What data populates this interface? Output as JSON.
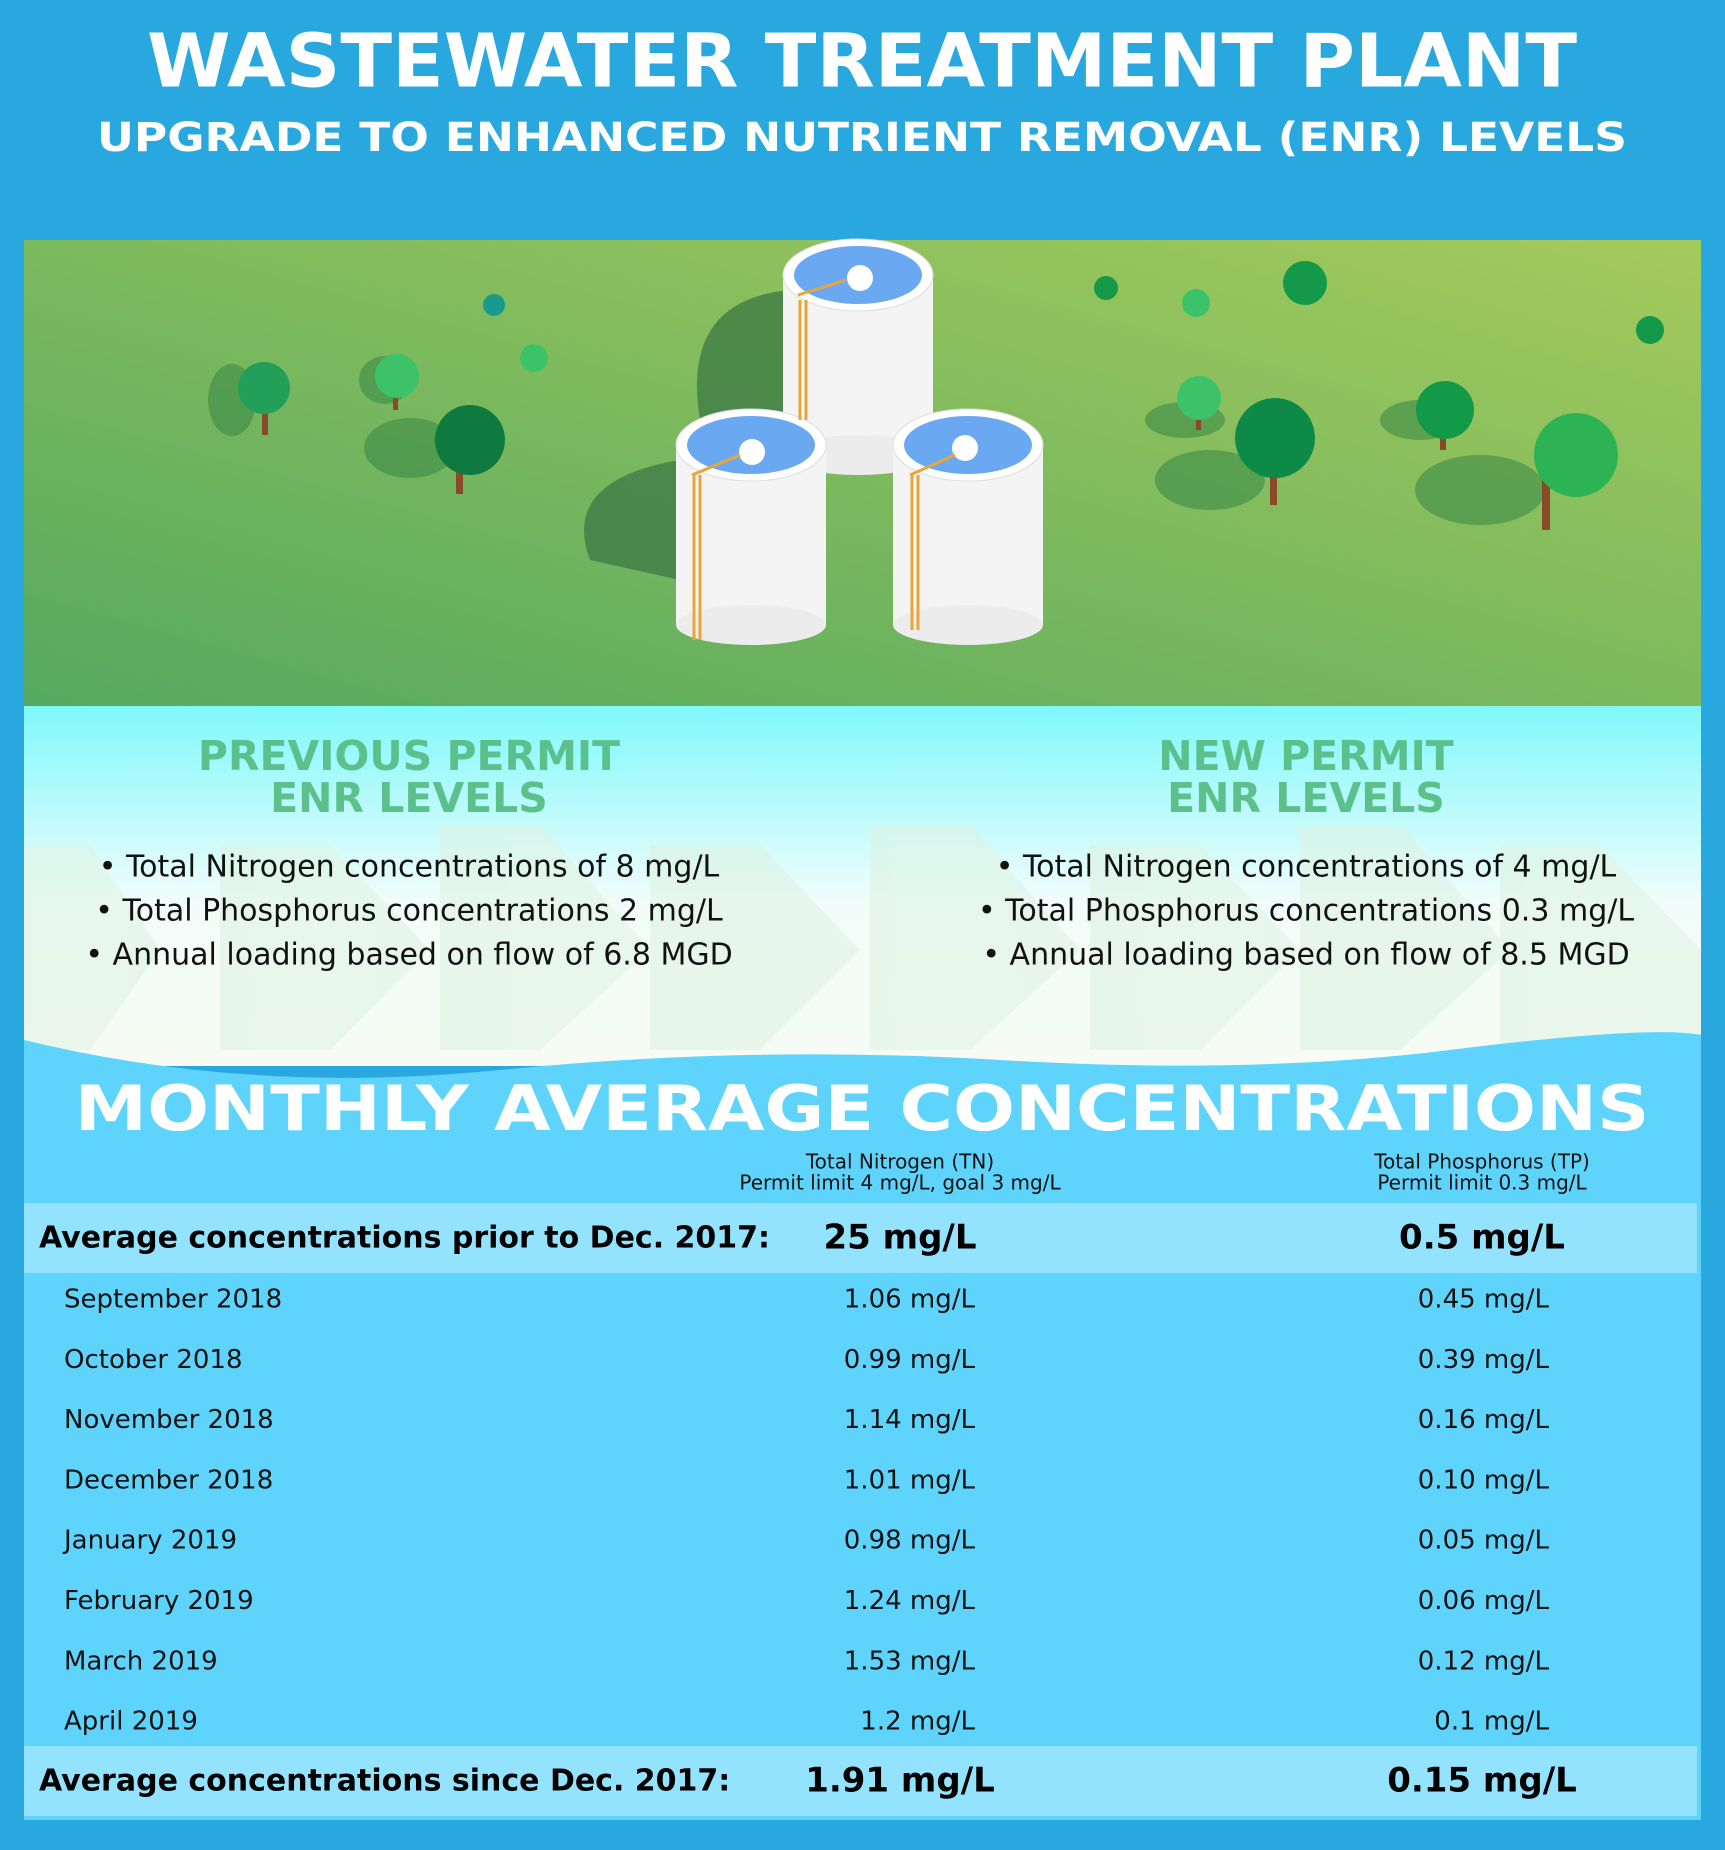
{
  "header": {
    "title": "WASTEWATER TREATMENT PLANT",
    "subtitle": "UPGRADE TO ENHANCED NUTRIENT REMOVAL (ENR) LEVELS"
  },
  "permits": [
    {
      "title": [
        "PREVIOUS PERMIT",
        "ENR LEVELS"
      ],
      "items": [
        "• Total Nitrogen concentrations of 8 mg/L",
        "• Total Phosphorus concentrations 2 mg/L",
        "• Annual loading based on flow of 6.8 MGD"
      ]
    },
    {
      "title": [
        "NEW PERMIT",
        "ENR LEVELS"
      ],
      "items": [
        "• Total Nitrogen concentrations of 4 mg/L",
        "• Total Phosphorus concentrations 0.3 mg/L",
        "• Annual loading based on flow of 8.5 MGD"
      ]
    }
  ],
  "table": {
    "heading": "MONTHLY AVERAGE CONCENTRATIONS",
    "columns": [
      {
        "name": "Total Nitrogen (TN)",
        "note": "Permit limit 4 mg/L, goal 3 mg/L"
      },
      {
        "name": "Total Phosphorus (TP)",
        "note": "Permit limit 0.3 mg/L"
      }
    ],
    "prior": [
      "Average concentrations prior to Dec. 2017:",
      "25 mg/L",
      "0.5 mg/L"
    ],
    "rows": [
      [
        "September 2018",
        "1.06 mg/L",
        "0.45 mg/L"
      ],
      [
        "October 2018",
        "0.99 mg/L",
        "0.39 mg/L"
      ],
      [
        "November 2018",
        "1.14 mg/L",
        "0.16 mg/L"
      ],
      [
        "December 2018",
        "1.01 mg/L",
        "0.10 mg/L"
      ],
      [
        "January 2019",
        "0.98 mg/L",
        "0.05 mg/L"
      ],
      [
        "February 2019",
        "1.24 mg/L",
        "0.06 mg/L"
      ],
      [
        "March 2019",
        "1.53 mg/L",
        "0.12 mg/L"
      ],
      [
        "April 2019",
        "1.2 mg/L",
        "0.1 mg/L"
      ]
    ],
    "since": [
      "Average concentrations since Dec. 2017:",
      "1.91 mg/L",
      "0.15 mg/L"
    ]
  }
}
